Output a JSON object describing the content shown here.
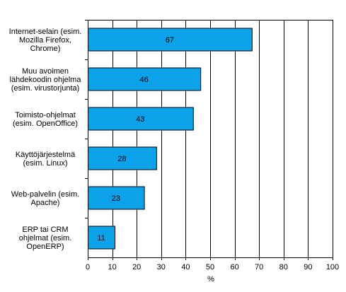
{
  "chart_data": {
    "type": "bar",
    "orientation": "horizontal",
    "title": "",
    "xlabel": "%",
    "ylabel": "",
    "categories": [
      [
        "Internet-selain (esim.",
        "Mozilla Firefox,",
        "Chrome)"
      ],
      [
        "Muu avoimen",
        "lähdekoodin ohjelma",
        "(esim. virustorjunta)"
      ],
      [
        "Toimisto-ohjelmat",
        "(esim. OpenOffice)"
      ],
      [
        "Käyttöjärjestelmä",
        "(esim. Linux)"
      ],
      [
        "Web-palvelin (esim.",
        "Apache)"
      ],
      [
        "ERP tai CRM",
        "ohjelmat (esim.",
        "OpenERP)"
      ]
    ],
    "values": [
      67,
      46,
      43,
      28,
      23,
      11
    ],
    "data_labels": [
      "67",
      "46",
      "43",
      "28",
      "23",
      "11"
    ],
    "xlim": [
      0,
      100
    ],
    "xticks": [
      0,
      10,
      20,
      30,
      40,
      50,
      60,
      70,
      80,
      90,
      100
    ],
    "grid": "vertical",
    "legend": "none",
    "colors": {
      "bar_fill": "#0ba2ea",
      "bar_stroke": "#000000",
      "grid": "#000000",
      "axis": "#000000",
      "plot_background": "#ffffff"
    }
  }
}
